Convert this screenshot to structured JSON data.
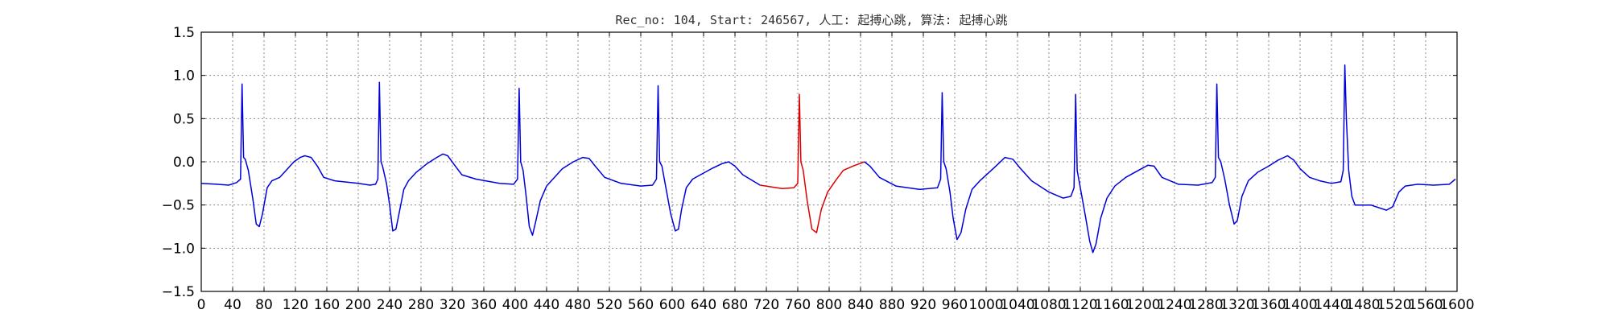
{
  "chart_data": {
    "type": "line",
    "title": "Rec_no: 104, Start: 246567, 人工: 起搏心跳, 算法: 起搏心跳",
    "xlabel": "",
    "ylabel": "",
    "xlim": [
      0,
      1600
    ],
    "ylim": [
      -1.5,
      1.5
    ],
    "grid": true,
    "x_ticks": [
      0,
      40,
      80,
      120,
      160,
      200,
      240,
      280,
      320,
      360,
      400,
      440,
      480,
      520,
      560,
      600,
      640,
      680,
      720,
      760,
      800,
      840,
      880,
      920,
      960,
      1000,
      1040,
      1080,
      1120,
      1160,
      1200,
      1240,
      1280,
      1320,
      1360,
      1400,
      1440,
      1480,
      1520,
      1560,
      1600
    ],
    "x_tick_labels": [
      "0",
      "40",
      "80",
      "120",
      "160",
      "200",
      "240",
      "280",
      "320",
      "360",
      "400",
      "440",
      "480",
      "520",
      "560",
      "600",
      "640",
      "680",
      "720",
      "760",
      "800",
      "840",
      "880",
      "920",
      "960",
      "1000",
      "1040",
      "1080",
      "1120",
      "1160",
      "1200",
      "1240",
      "1280",
      "1320",
      "1360",
      "1400",
      "1440",
      "1480",
      "1520",
      "1560",
      "1600"
    ],
    "y_ticks": [
      -1.5,
      -1.0,
      -0.5,
      0.0,
      0.5,
      1.0,
      1.5
    ],
    "y_tick_labels": [
      "−1.5",
      "−1.0",
      "−0.5",
      "0.0",
      "0.5",
      "1.0",
      "1.5"
    ],
    "series": [
      {
        "color": "#0000dd",
        "points": [
          [
            0,
            -0.25
          ],
          [
            20,
            -0.26
          ],
          [
            35,
            -0.27
          ],
          [
            45,
            -0.24
          ],
          [
            50,
            -0.2
          ],
          [
            52,
            0.9
          ],
          [
            54,
            0.05
          ],
          [
            56,
            0.03
          ],
          [
            60,
            -0.1
          ],
          [
            66,
            -0.45
          ],
          [
            70,
            -0.72
          ],
          [
            74,
            -0.75
          ],
          [
            78,
            -0.6
          ],
          [
            84,
            -0.3
          ],
          [
            90,
            -0.22
          ],
          [
            100,
            -0.18
          ],
          [
            110,
            -0.08
          ],
          [
            118,
            0.0
          ],
          [
            126,
            0.05
          ],
          [
            132,
            0.07
          ],
          [
            140,
            0.05
          ],
          [
            148,
            -0.05
          ],
          [
            156,
            -0.18
          ],
          [
            170,
            -0.22
          ],
          [
            200,
            -0.25
          ],
          [
            215,
            -0.27
          ],
          [
            222,
            -0.26
          ],
          [
            225,
            -0.2
          ],
          [
            227,
            0.92
          ],
          [
            229,
            0.0
          ],
          [
            231,
            -0.05
          ],
          [
            236,
            -0.25
          ],
          [
            240,
            -0.5
          ],
          [
            244,
            -0.8
          ],
          [
            248,
            -0.78
          ],
          [
            252,
            -0.6
          ],
          [
            258,
            -0.32
          ],
          [
            264,
            -0.22
          ],
          [
            274,
            -0.12
          ],
          [
            288,
            -0.02
          ],
          [
            300,
            0.05
          ],
          [
            308,
            0.09
          ],
          [
            314,
            0.07
          ],
          [
            322,
            -0.03
          ],
          [
            332,
            -0.15
          ],
          [
            350,
            -0.2
          ],
          [
            380,
            -0.25
          ],
          [
            398,
            -0.26
          ],
          [
            403,
            -0.2
          ],
          [
            405,
            0.85
          ],
          [
            407,
            0.0
          ],
          [
            410,
            -0.1
          ],
          [
            414,
            -0.4
          ],
          [
            418,
            -0.75
          ],
          [
            422,
            -0.85
          ],
          [
            426,
            -0.7
          ],
          [
            432,
            -0.45
          ],
          [
            440,
            -0.28
          ],
          [
            448,
            -0.2
          ],
          [
            460,
            -0.08
          ],
          [
            474,
            0.0
          ],
          [
            486,
            0.05
          ],
          [
            494,
            0.04
          ],
          [
            502,
            -0.05
          ],
          [
            514,
            -0.18
          ],
          [
            535,
            -0.25
          ],
          [
            560,
            -0.28
          ],
          [
            575,
            -0.27
          ],
          [
            580,
            -0.2
          ],
          [
            582,
            0.88
          ],
          [
            584,
            0.0
          ],
          [
            587,
            -0.05
          ],
          [
            592,
            -0.3
          ],
          [
            598,
            -0.6
          ],
          [
            604,
            -0.8
          ],
          [
            608,
            -0.78
          ],
          [
            612,
            -0.55
          ],
          [
            618,
            -0.3
          ],
          [
            626,
            -0.2
          ],
          [
            636,
            -0.15
          ],
          [
            650,
            -0.08
          ],
          [
            664,
            -0.02
          ],
          [
            672,
            0.0
          ],
          [
            680,
            -0.05
          ],
          [
            690,
            -0.15
          ],
          [
            712,
            -0.27
          ]
        ]
      },
      {
        "color": "#dd0000",
        "points": [
          [
            712,
            -0.27
          ],
          [
            740,
            -0.31
          ],
          [
            755,
            -0.3
          ],
          [
            760,
            -0.25
          ],
          [
            762,
            0.78
          ],
          [
            764,
            0.0
          ],
          [
            767,
            -0.1
          ],
          [
            772,
            -0.45
          ],
          [
            778,
            -0.78
          ],
          [
            784,
            -0.82
          ],
          [
            790,
            -0.55
          ],
          [
            798,
            -0.35
          ],
          [
            808,
            -0.22
          ],
          [
            818,
            -0.1
          ],
          [
            830,
            -0.05
          ],
          [
            845,
            0.0
          ]
        ]
      },
      {
        "color": "#0000dd",
        "points": [
          [
            845,
            0.0
          ],
          [
            852,
            -0.05
          ],
          [
            864,
            -0.18
          ],
          [
            885,
            -0.28
          ],
          [
            915,
            -0.32
          ],
          [
            938,
            -0.3
          ],
          [
            942,
            -0.2
          ],
          [
            944,
            0.8
          ],
          [
            946,
            0.0
          ],
          [
            949,
            -0.08
          ],
          [
            954,
            -0.35
          ],
          [
            958,
            -0.65
          ],
          [
            963,
            -0.9
          ],
          [
            968,
            -0.82
          ],
          [
            974,
            -0.55
          ],
          [
            982,
            -0.32
          ],
          [
            992,
            -0.22
          ],
          [
            1004,
            -0.12
          ],
          [
            1016,
            -0.02
          ],
          [
            1024,
            0.05
          ],
          [
            1034,
            0.03
          ],
          [
            1044,
            -0.08
          ],
          [
            1058,
            -0.22
          ],
          [
            1080,
            -0.35
          ],
          [
            1098,
            -0.42
          ],
          [
            1108,
            -0.4
          ],
          [
            1112,
            -0.3
          ],
          [
            1114,
            0.78
          ],
          [
            1116,
            -0.1
          ],
          [
            1120,
            -0.3
          ],
          [
            1126,
            -0.6
          ],
          [
            1132,
            -0.92
          ],
          [
            1136,
            -1.05
          ],
          [
            1140,
            -0.95
          ],
          [
            1146,
            -0.65
          ],
          [
            1154,
            -0.42
          ],
          [
            1164,
            -0.28
          ],
          [
            1178,
            -0.18
          ],
          [
            1194,
            -0.1
          ],
          [
            1206,
            -0.04
          ],
          [
            1214,
            -0.05
          ],
          [
            1224,
            -0.18
          ],
          [
            1245,
            -0.26
          ],
          [
            1270,
            -0.27
          ],
          [
            1288,
            -0.24
          ],
          [
            1292,
            -0.18
          ],
          [
            1294,
            0.9
          ],
          [
            1296,
            0.05
          ],
          [
            1299,
            0.0
          ],
          [
            1304,
            -0.2
          ],
          [
            1310,
            -0.5
          ],
          [
            1316,
            -0.72
          ],
          [
            1320,
            -0.68
          ],
          [
            1326,
            -0.4
          ],
          [
            1334,
            -0.22
          ],
          [
            1346,
            -0.12
          ],
          [
            1360,
            -0.05
          ],
          [
            1372,
            0.02
          ],
          [
            1384,
            0.07
          ],
          [
            1392,
            0.02
          ],
          [
            1400,
            -0.08
          ],
          [
            1412,
            -0.18
          ],
          [
            1425,
            -0.22
          ],
          [
            1440,
            -0.25
          ],
          [
            1452,
            -0.23
          ],
          [
            1455,
            -0.1
          ],
          [
            1457,
            1.12
          ],
          [
            1459,
            0.5
          ],
          [
            1462,
            -0.1
          ],
          [
            1466,
            -0.4
          ],
          [
            1470,
            -0.5
          ],
          [
            1490,
            -0.5
          ],
          [
            1510,
            -0.56
          ],
          [
            1518,
            -0.52
          ],
          [
            1526,
            -0.35
          ],
          [
            1534,
            -0.28
          ],
          [
            1550,
            -0.26
          ],
          [
            1570,
            -0.27
          ],
          [
            1590,
            -0.26
          ],
          [
            1598,
            -0.2
          ]
        ]
      }
    ]
  }
}
